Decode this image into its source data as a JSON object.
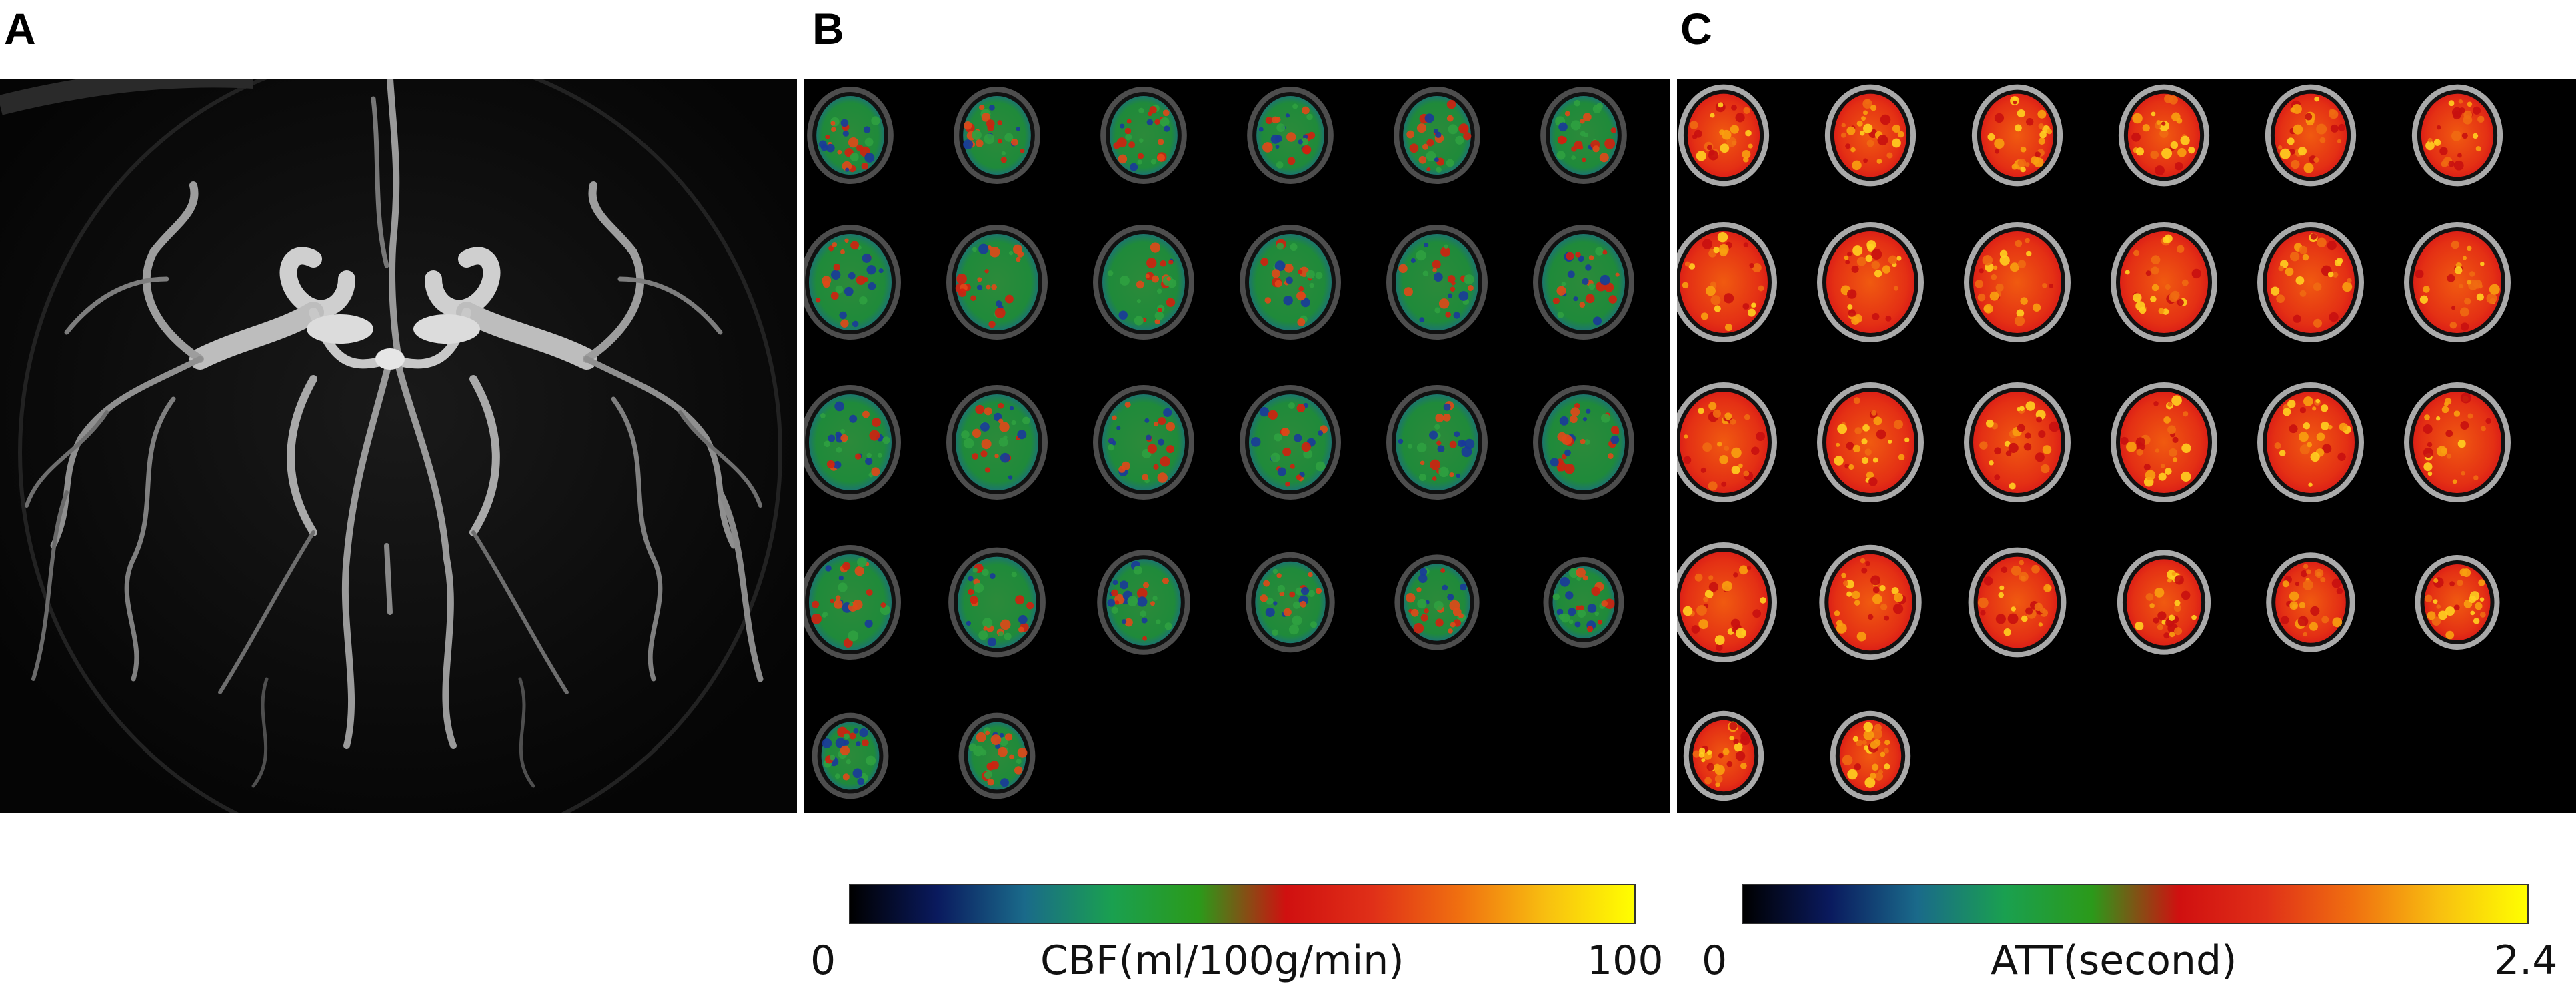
{
  "panels": {
    "a": {
      "letter": "A"
    },
    "b": {
      "letter": "B"
    },
    "c": {
      "letter": "C"
    }
  },
  "colorbars": {
    "cbf": {
      "min": "0",
      "max": "100",
      "title": "CBF(ml/100g/min)",
      "stops": [
        "#000000",
        "#0a1a5e",
        "#1a6a8a",
        "#1aa050",
        "#2b9a1a",
        "#d01010",
        "#e03018",
        "#f07010",
        "#f8c010",
        "#ffff00"
      ]
    },
    "att": {
      "min": "0",
      "max": "2.4",
      "title": "ATT(second)",
      "stops": [
        "#000000",
        "#0a1a5e",
        "#1a6a8a",
        "#1aa050",
        "#2b9a1a",
        "#d01010",
        "#e03018",
        "#f07010",
        "#f8c010",
        "#ffff00"
      ]
    }
  }
}
